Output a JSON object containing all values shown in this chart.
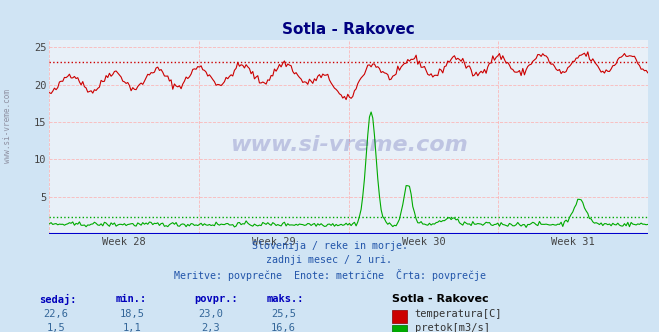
{
  "title": "Sotla - Rakovec",
  "bg_color": "#d0e4f4",
  "plot_bg_color": "#e8f0f8",
  "grid_color": "#ffaaaa",
  "x_labels": [
    "Week 28",
    "Week 29",
    "Week 30",
    "Week 31"
  ],
  "ylim": [
    0,
    26
  ],
  "yticks": [
    5,
    10,
    15,
    20,
    25
  ],
  "temp_avg": 23.0,
  "flow_avg": 2.3,
  "subtitle_lines": [
    "Slovenija / reke in morje.",
    "zadnji mesec / 2 uri.",
    "Meritve: povprečne  Enote: metrične  Črta: povprečje"
  ],
  "table_headers": [
    "sedaj:",
    "min.:",
    "povpr.:",
    "maks.:"
  ],
  "table_row1": [
    "22,6",
    "18,5",
    "23,0",
    "25,5"
  ],
  "table_row2": [
    "1,5",
    "1,1",
    "2,3",
    "16,6"
  ],
  "legend_label1": "temperatura[C]",
  "legend_label2": "pretok[m3/s]",
  "legend_title": "Sotla - Rakovec",
  "temp_color": "#cc0000",
  "flow_color": "#00aa00",
  "watermark_text": "www.si-vreme.com",
  "left_label": "www.si-vreme.com",
  "header_color": "#0000bb",
  "value_color": "#336699",
  "subtitle_color": "#2255aa"
}
